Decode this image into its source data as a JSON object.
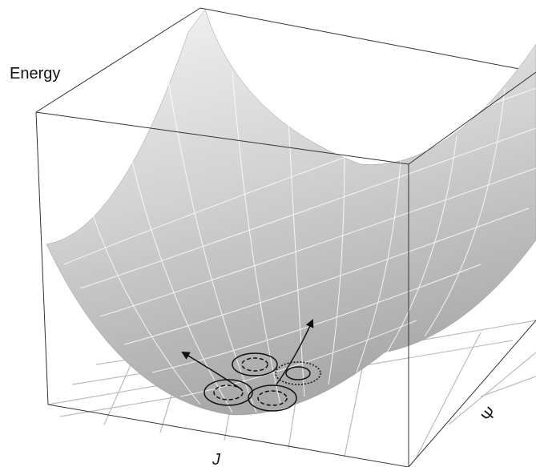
{
  "axes": {
    "z": "Energy",
    "x": "J",
    "y": "Ψ"
  }
}
